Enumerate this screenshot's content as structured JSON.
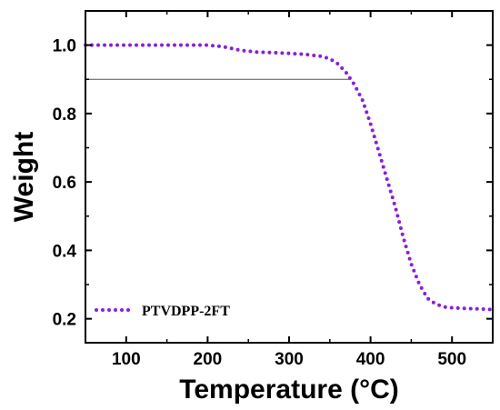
{
  "chart_data": {
    "type": "line",
    "title": "",
    "xlabel": "Temperature (°C)",
    "ylabel": "Weight",
    "xlim": [
      50,
      550
    ],
    "ylim": [
      0.13,
      1.1
    ],
    "x_ticks": [
      100,
      200,
      300,
      400,
      500
    ],
    "y_ticks": [
      0.2,
      0.4,
      0.6,
      0.8,
      1.0
    ],
    "x_tick_labels": [
      "100",
      "200",
      "300",
      "400",
      "500"
    ],
    "y_tick_labels": [
      "0.2",
      "0.4",
      "0.6",
      "0.8",
      "1.0"
    ],
    "grid": false,
    "legend_position": "bottom-left",
    "series": [
      {
        "name": "PTVDPP-2FT",
        "color": "#8b1fd6",
        "line_style": "dotted",
        "x": [
          50,
          100,
          150,
          200,
          220,
          240,
          260,
          280,
          300,
          320,
          340,
          350,
          360,
          370,
          380,
          390,
          400,
          410,
          420,
          430,
          440,
          450,
          460,
          470,
          480,
          490,
          500,
          520,
          540,
          550
        ],
        "y": [
          1.0,
          1.0,
          1.0,
          1.0,
          0.995,
          0.985,
          0.98,
          0.978,
          0.976,
          0.973,
          0.967,
          0.96,
          0.945,
          0.92,
          0.885,
          0.84,
          0.77,
          0.69,
          0.61,
          0.53,
          0.44,
          0.36,
          0.3,
          0.26,
          0.243,
          0.235,
          0.232,
          0.23,
          0.228,
          0.227
        ]
      }
    ],
    "reference_line": {
      "y": 0.9,
      "x_start": 50,
      "x_end": 375,
      "color": "#555555"
    }
  }
}
